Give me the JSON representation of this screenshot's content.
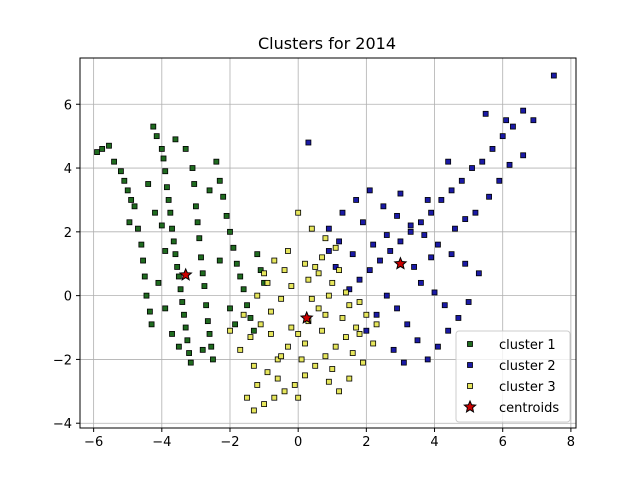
{
  "chart_data": {
    "type": "scatter",
    "title": "Clusters for 2014",
    "xlabel": "",
    "ylabel": "",
    "xlim": [
      -6.4,
      8.15
    ],
    "ylim": [
      -4.15,
      7.45
    ],
    "xticks": [
      -6,
      -4,
      -2,
      0,
      2,
      4,
      6,
      8
    ],
    "yticks": [
      -4,
      -2,
      0,
      2,
      4,
      6
    ],
    "grid": true,
    "legend_position": "lower-right",
    "series": [
      {
        "name": "cluster 1",
        "color": "#1f6b1f",
        "edge": "#000000",
        "marker": "square",
        "points": [
          [
            -5.9,
            4.5
          ],
          [
            -5.75,
            4.6
          ],
          [
            -5.55,
            4.7
          ],
          [
            -5.4,
            4.2
          ],
          [
            -5.2,
            3.9
          ],
          [
            -5.1,
            3.6
          ],
          [
            -5.0,
            3.3
          ],
          [
            -4.9,
            3.0
          ],
          [
            -4.8,
            2.8
          ],
          [
            -4.95,
            2.3
          ],
          [
            -4.7,
            2.1
          ],
          [
            -4.6,
            1.6
          ],
          [
            -4.55,
            1.1
          ],
          [
            -4.5,
            0.6
          ],
          [
            -4.45,
            0.0
          ],
          [
            -4.35,
            -0.5
          ],
          [
            -4.3,
            -0.9
          ],
          [
            -4.25,
            5.3
          ],
          [
            -4.15,
            5.0
          ],
          [
            -4.0,
            4.6
          ],
          [
            -3.95,
            4.3
          ],
          [
            -3.9,
            3.9
          ],
          [
            -3.85,
            3.4
          ],
          [
            -3.8,
            3.0
          ],
          [
            -3.75,
            2.6
          ],
          [
            -3.7,
            2.1
          ],
          [
            -3.65,
            1.7
          ],
          [
            -3.6,
            1.3
          ],
          [
            -3.55,
            0.9
          ],
          [
            -3.5,
            0.6
          ],
          [
            -3.45,
            0.2
          ],
          [
            -3.4,
            -0.2
          ],
          [
            -3.35,
            -0.6
          ],
          [
            -3.3,
            -1.0
          ],
          [
            -3.25,
            -1.4
          ],
          [
            -3.2,
            -1.8
          ],
          [
            -3.15,
            -2.1
          ],
          [
            -3.1,
            4.0
          ],
          [
            -3.05,
            3.5
          ],
          [
            -3.0,
            2.8
          ],
          [
            -2.95,
            2.3
          ],
          [
            -2.9,
            1.8
          ],
          [
            -2.85,
            1.2
          ],
          [
            -2.8,
            0.7
          ],
          [
            -2.75,
            0.3
          ],
          [
            -2.7,
            -0.3
          ],
          [
            -2.65,
            -0.8
          ],
          [
            -2.6,
            -1.2
          ],
          [
            -2.55,
            -1.6
          ],
          [
            -2.5,
            -2.0
          ],
          [
            -2.4,
            4.2
          ],
          [
            -2.3,
            3.6
          ],
          [
            -2.2,
            3.1
          ],
          [
            -2.1,
            2.5
          ],
          [
            -2.0,
            2.0
          ],
          [
            -1.9,
            1.5
          ],
          [
            -1.8,
            1.0
          ],
          [
            -1.7,
            0.6
          ],
          [
            -1.6,
            0.2
          ],
          [
            -1.5,
            -0.3
          ],
          [
            -1.4,
            -0.7
          ],
          [
            -1.3,
            -1.1
          ],
          [
            -1.2,
            1.3
          ],
          [
            -1.1,
            0.8
          ],
          [
            -1.0,
            0.4
          ],
          [
            -4.1,
            0.4
          ],
          [
            -3.9,
            -0.4
          ],
          [
            -3.7,
            -1.2
          ],
          [
            -3.5,
            -1.6
          ],
          [
            -4.2,
            2.6
          ],
          [
            -4.4,
            3.5
          ],
          [
            -3.3,
            4.6
          ],
          [
            -3.6,
            4.9
          ],
          [
            -2.6,
            3.3
          ],
          [
            -2.3,
            1.1
          ],
          [
            -2.0,
            -0.4
          ],
          [
            -1.85,
            -0.9
          ],
          [
            -2.8,
            -1.7
          ],
          [
            -3.9,
            1.4
          ],
          [
            -4.0,
            2.2
          ]
        ]
      },
      {
        "name": "cluster 2",
        "color": "#1a1aa6",
        "edge": "#000000",
        "marker": "square",
        "points": [
          [
            7.5,
            6.9
          ],
          [
            6.6,
            5.8
          ],
          [
            6.9,
            5.5
          ],
          [
            6.3,
            5.3
          ],
          [
            6.0,
            5.0
          ],
          [
            5.7,
            4.6
          ],
          [
            5.4,
            4.2
          ],
          [
            5.1,
            4.0
          ],
          [
            4.8,
            3.6
          ],
          [
            4.5,
            3.3
          ],
          [
            4.2,
            3.0
          ],
          [
            3.9,
            2.6
          ],
          [
            3.6,
            2.3
          ],
          [
            3.3,
            2.0
          ],
          [
            3.0,
            1.7
          ],
          [
            2.7,
            1.4
          ],
          [
            2.4,
            1.1
          ],
          [
            2.1,
            0.8
          ],
          [
            1.8,
            0.5
          ],
          [
            1.5,
            0.2
          ],
          [
            1.2,
            1.7
          ],
          [
            0.9,
            2.1
          ],
          [
            1.3,
            2.6
          ],
          [
            1.7,
            3.0
          ],
          [
            2.1,
            3.3
          ],
          [
            2.5,
            2.8
          ],
          [
            2.9,
            2.5
          ],
          [
            3.3,
            2.2
          ],
          [
            3.7,
            1.9
          ],
          [
            4.1,
            1.6
          ],
          [
            4.5,
            1.3
          ],
          [
            4.9,
            1.0
          ],
          [
            5.3,
            0.7
          ],
          [
            5.0,
            -0.2
          ],
          [
            4.7,
            -0.7
          ],
          [
            4.4,
            -1.1
          ],
          [
            4.1,
            -1.6
          ],
          [
            3.8,
            -2.0
          ],
          [
            3.5,
            -1.4
          ],
          [
            3.2,
            -0.9
          ],
          [
            2.9,
            -0.4
          ],
          [
            2.6,
            0.0
          ],
          [
            2.3,
            -0.6
          ],
          [
            2.0,
            -1.1
          ],
          [
            2.8,
            -1.7
          ],
          [
            3.1,
            -2.1
          ],
          [
            3.6,
            0.4
          ],
          [
            4.0,
            0.1
          ],
          [
            4.3,
            -0.3
          ],
          [
            5.6,
            3.1
          ],
          [
            5.9,
            3.6
          ],
          [
            6.2,
            4.1
          ],
          [
            6.6,
            4.4
          ],
          [
            5.2,
            2.6
          ],
          [
            4.6,
            2.1
          ],
          [
            3.4,
            0.9
          ],
          [
            2.2,
            1.6
          ],
          [
            1.6,
            1.3
          ],
          [
            1.1,
            0.9
          ],
          [
            0.3,
            4.8
          ],
          [
            0.9,
            1.4
          ],
          [
            1.9,
            2.3
          ],
          [
            2.6,
            1.9
          ],
          [
            3.0,
            3.2
          ],
          [
            3.8,
            3.0
          ],
          [
            4.4,
            4.2
          ],
          [
            5.5,
            5.7
          ],
          [
            6.1,
            5.5
          ],
          [
            4.9,
            2.4
          ],
          [
            3.9,
            1.2
          ]
        ]
      },
      {
        "name": "cluster 3",
        "color": "#e6e65c",
        "edge": "#000000",
        "marker": "square",
        "points": [
          [
            0.0,
            2.6
          ],
          [
            0.4,
            2.1
          ],
          [
            0.8,
            1.8
          ],
          [
            1.1,
            1.5
          ],
          [
            -0.3,
            1.4
          ],
          [
            -0.7,
            1.1
          ],
          [
            -1.0,
            0.7
          ],
          [
            0.2,
            1.0
          ],
          [
            0.6,
            0.7
          ],
          [
            1.0,
            0.4
          ],
          [
            1.4,
            0.1
          ],
          [
            1.8,
            -0.2
          ],
          [
            2.0,
            -0.6
          ],
          [
            1.7,
            -1.0
          ],
          [
            1.4,
            -1.3
          ],
          [
            1.1,
            -1.6
          ],
          [
            0.8,
            -1.9
          ],
          [
            0.5,
            -2.2
          ],
          [
            0.2,
            -2.5
          ],
          [
            -0.1,
            -2.8
          ],
          [
            -0.4,
            -3.0
          ],
          [
            -0.7,
            -3.2
          ],
          [
            -1.0,
            -3.4
          ],
          [
            -1.3,
            -3.6
          ],
          [
            -1.5,
            -3.2
          ],
          [
            -1.2,
            -2.8
          ],
          [
            -0.9,
            -2.4
          ],
          [
            -0.6,
            -2.0
          ],
          [
            -0.3,
            -1.6
          ],
          [
            0.0,
            -1.2
          ],
          [
            0.3,
            -0.8
          ],
          [
            0.6,
            -0.4
          ],
          [
            0.9,
            0.0
          ],
          [
            -0.2,
            0.3
          ],
          [
            -0.5,
            -0.1
          ],
          [
            -0.8,
            -0.5
          ],
          [
            -1.1,
            -0.9
          ],
          [
            -1.4,
            -1.3
          ],
          [
            -1.7,
            -1.7
          ],
          [
            -2.0,
            -1.1
          ],
          [
            -1.6,
            -0.6
          ],
          [
            -1.2,
            0.0
          ],
          [
            0.4,
            -0.1
          ],
          [
            0.7,
            -1.1
          ],
          [
            1.3,
            -0.7
          ],
          [
            1.6,
            -1.8
          ],
          [
            1.9,
            -2.1
          ],
          [
            2.2,
            -1.5
          ],
          [
            1.5,
            -2.6
          ],
          [
            1.2,
            -3.0
          ],
          [
            0.9,
            -2.7
          ],
          [
            0.1,
            -2.0
          ],
          [
            -0.2,
            -1.0
          ],
          [
            -0.5,
            -1.9
          ],
          [
            -0.8,
            -1.2
          ],
          [
            0.3,
            0.5
          ],
          [
            0.7,
            1.2
          ],
          [
            0.0,
            -3.2
          ],
          [
            -0.6,
            -2.6
          ],
          [
            1.0,
            -2.3
          ],
          [
            1.8,
            -1.2
          ],
          [
            0.5,
            0.9
          ],
          [
            -0.4,
            0.8
          ],
          [
            1.2,
            0.8
          ],
          [
            2.3,
            -0.9
          ],
          [
            0.2,
            -1.5
          ],
          [
            -1.3,
            -2.2
          ],
          [
            0.8,
            -0.6
          ],
          [
            1.5,
            -0.3
          ],
          [
            -0.9,
            0.4
          ]
        ]
      },
      {
        "name": "centroids",
        "color": "#cc0000",
        "edge": "#000000",
        "marker": "star",
        "points": [
          [
            -3.3,
            0.65
          ],
          [
            0.25,
            -0.7
          ],
          [
            3.0,
            1.0
          ]
        ]
      }
    ]
  }
}
